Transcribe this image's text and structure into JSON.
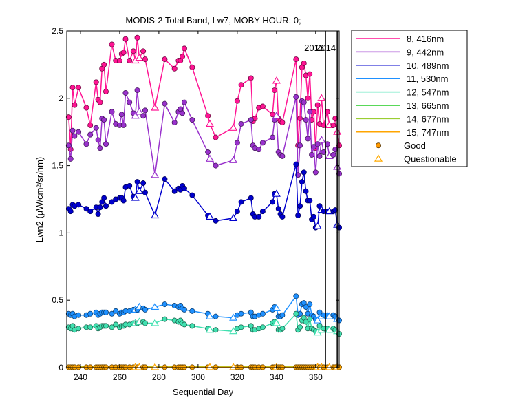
{
  "chart_data": {
    "type": "line",
    "title": "MODIS-2 Total Band, Lw7, MOBY HOUR: 0;",
    "xlabel": "Sequential Day",
    "ylabel": "Lwn2 (µW/cm²/sr/nm)",
    "xlim": [
      233,
      372
    ],
    "ylim": [
      0,
      2.5
    ],
    "xticks": [
      "240",
      "260",
      "280",
      "300",
      "320",
      "340",
      "360"
    ],
    "yticks": [
      "0",
      "0.5",
      "1",
      "1.5",
      "2",
      "2.5"
    ],
    "grid": false,
    "legend_position": "outside-right",
    "year_markers": [
      {
        "label": "2013",
        "x": 365
      },
      {
        "label": "2014",
        "x": 371
      }
    ],
    "x": [
      234,
      235,
      236,
      237,
      239,
      243,
      245,
      248,
      249,
      250,
      251,
      252,
      253,
      256,
      258,
      260,
      261,
      262,
      263,
      265,
      267,
      268,
      269,
      270,
      272,
      273,
      278,
      283,
      288,
      290,
      291,
      292,
      293,
      297,
      305,
      306,
      309,
      318,
      320,
      322,
      327,
      328,
      329,
      331,
      333,
      338,
      339,
      340,
      341,
      342,
      343,
      350,
      351,
      352,
      353,
      354,
      355,
      356,
      357,
      358,
      359,
      360,
      361,
      362,
      363,
      364,
      366,
      367,
      369,
      370,
      371,
      372
    ],
    "series": [
      {
        "name": "8, 416nm",
        "color": "#ff1493",
        "values": [
          1.86,
          1.62,
          2.08,
          1.95,
          2.08,
          1.93,
          1.8,
          2.12,
          1.99,
          1.97,
          2.22,
          2.25,
          2.05,
          2.4,
          2.28,
          2.28,
          2.33,
          2.34,
          2.44,
          2.28,
          2.35,
          2.28,
          2.45,
          2.3,
          2.35,
          2.29,
          1.93,
          2.29,
          2.22,
          2.28,
          2.28,
          2.31,
          2.37,
          2.23,
          1.87,
          1.81,
          1.71,
          1.78,
          1.98,
          2.1,
          2.15,
          1.83,
          1.85,
          1.93,
          1.94,
          1.88,
          2.06,
          2.13,
          1.85,
          1.83,
          1.82,
          2.29,
          1.65,
          1.85,
          2.23,
          2.26,
          2.17,
          2.0,
          2.18,
          1.84,
          1.9,
          1.63,
          1.95,
          1.81,
          2.0,
          1.8,
          1.9,
          1.8,
          1.8,
          1.85,
          1.75,
          1.65
        ],
        "quality": [
          "g",
          "g",
          "g",
          "g",
          "g",
          "g",
          "g",
          "g",
          "g",
          "g",
          "g",
          "g",
          "g",
          "g",
          "g",
          "g",
          "g",
          "g",
          "g",
          "g",
          "g",
          "q",
          "g",
          "q",
          "g",
          "g",
          "q",
          "g",
          "g",
          "g",
          "g",
          "g",
          "g",
          "g",
          "g",
          "q",
          "g",
          "q",
          "g",
          "g",
          "g",
          "g",
          "g",
          "g",
          "g",
          "g",
          "g",
          "q",
          "g",
          "g",
          "g",
          "g",
          "g",
          "g",
          "g",
          "g",
          "g",
          "g",
          "g",
          "g",
          "g",
          "g",
          "g",
          "g",
          "q",
          "g",
          "g",
          "q",
          "g",
          "g",
          "q",
          "g"
        ]
      },
      {
        "name": "9, 442nm",
        "color": "#9932cc",
        "values": [
          1.65,
          1.55,
          1.76,
          1.72,
          1.75,
          1.66,
          1.73,
          1.78,
          1.69,
          1.63,
          1.85,
          1.84,
          1.66,
          1.9,
          1.81,
          1.8,
          1.88,
          1.8,
          2.04,
          1.97,
          1.89,
          1.87,
          2.06,
          1.9,
          1.87,
          1.91,
          1.43,
          1.96,
          1.82,
          1.9,
          1.92,
          1.89,
          1.97,
          1.84,
          1.6,
          1.55,
          1.5,
          1.54,
          1.67,
          1.81,
          1.84,
          1.65,
          1.63,
          1.62,
          1.67,
          1.71,
          1.84,
          1.87,
          1.6,
          1.58,
          1.57,
          2.01,
          1.43,
          1.65,
          1.98,
          1.97,
          1.84,
          1.7,
          1.9,
          1.58,
          1.64,
          1.45,
          1.66,
          1.57,
          1.69,
          1.6,
          1.66,
          1.57,
          1.58,
          1.62,
          1.49,
          1.44
        ],
        "quality": [
          "g",
          "g",
          "g",
          "g",
          "g",
          "g",
          "g",
          "g",
          "g",
          "g",
          "g",
          "g",
          "g",
          "g",
          "g",
          "g",
          "g",
          "g",
          "g",
          "g",
          "g",
          "q",
          "g",
          "q",
          "g",
          "g",
          "q",
          "g",
          "g",
          "g",
          "g",
          "g",
          "g",
          "g",
          "g",
          "q",
          "g",
          "q",
          "g",
          "g",
          "g",
          "g",
          "g",
          "g",
          "g",
          "g",
          "g",
          "q",
          "g",
          "g",
          "g",
          "g",
          "g",
          "g",
          "g",
          "g",
          "g",
          "g",
          "g",
          "g",
          "g",
          "g",
          "g",
          "g",
          "q",
          "g",
          "g",
          "q",
          "g",
          "g",
          "q",
          "g"
        ]
      },
      {
        "name": "10, 489nm",
        "color": "#0000cd",
        "values": [
          1.18,
          1.16,
          1.21,
          1.2,
          1.21,
          1.18,
          1.16,
          1.19,
          1.14,
          1.19,
          1.23,
          1.26,
          1.2,
          1.23,
          1.25,
          1.26,
          1.26,
          1.24,
          1.34,
          1.35,
          1.27,
          1.26,
          1.38,
          1.31,
          1.37,
          1.3,
          1.13,
          1.4,
          1.31,
          1.33,
          1.32,
          1.35,
          1.33,
          1.28,
          1.13,
          1.12,
          1.09,
          1.11,
          1.16,
          1.23,
          1.26,
          1.14,
          1.12,
          1.12,
          1.16,
          1.23,
          1.29,
          1.29,
          1.18,
          1.14,
          1.12,
          1.51,
          1.13,
          1.2,
          1.38,
          1.45,
          1.31,
          1.24,
          1.24,
          1.1,
          1.12,
          1.04,
          1.05,
          1.2,
          1.17,
          1.16,
          1.16,
          1.16,
          1.16,
          1.17,
          1.06,
          1.04
        ],
        "quality": [
          "g",
          "g",
          "g",
          "g",
          "g",
          "g",
          "g",
          "g",
          "g",
          "g",
          "g",
          "g",
          "g",
          "g",
          "g",
          "g",
          "g",
          "g",
          "g",
          "g",
          "g",
          "q",
          "g",
          "q",
          "g",
          "g",
          "q",
          "g",
          "g",
          "g",
          "g",
          "g",
          "g",
          "g",
          "g",
          "q",
          "g",
          "q",
          "g",
          "g",
          "g",
          "g",
          "g",
          "g",
          "g",
          "g",
          "g",
          "q",
          "g",
          "g",
          "g",
          "g",
          "g",
          "g",
          "g",
          "g",
          "g",
          "g",
          "g",
          "g",
          "g",
          "g",
          "q",
          "g",
          "q",
          "g",
          "g",
          "q",
          "g",
          "g",
          "q",
          "g"
        ]
      },
      {
        "name": "11, 530nm",
        "color": "#1e90ff",
        "values": [
          0.4,
          0.39,
          0.4,
          0.38,
          0.39,
          0.39,
          0.4,
          0.41,
          0.39,
          0.4,
          0.41,
          0.41,
          0.41,
          0.4,
          0.42,
          0.4,
          0.41,
          0.41,
          0.42,
          0.42,
          0.43,
          0.43,
          0.43,
          0.45,
          0.44,
          0.43,
          0.45,
          0.47,
          0.46,
          0.45,
          0.46,
          0.44,
          0.43,
          0.42,
          0.4,
          0.38,
          0.38,
          0.37,
          0.39,
          0.4,
          0.41,
          0.38,
          0.38,
          0.39,
          0.4,
          0.43,
          0.45,
          0.44,
          0.38,
          0.38,
          0.39,
          0.53,
          0.39,
          0.4,
          0.47,
          0.48,
          0.45,
          0.4,
          0.47,
          0.39,
          0.38,
          0.36,
          0.35,
          0.41,
          0.38,
          0.39,
          0.39,
          0.38,
          0.39,
          0.38,
          0.36,
          0.35
        ],
        "quality": [
          "g",
          "g",
          "g",
          "g",
          "g",
          "g",
          "g",
          "g",
          "g",
          "g",
          "g",
          "g",
          "g",
          "g",
          "g",
          "g",
          "g",
          "g",
          "g",
          "g",
          "g",
          "q",
          "g",
          "q",
          "g",
          "g",
          "q",
          "g",
          "g",
          "g",
          "g",
          "g",
          "g",
          "g",
          "g",
          "q",
          "g",
          "q",
          "g",
          "g",
          "g",
          "g",
          "g",
          "g",
          "g",
          "g",
          "g",
          "q",
          "g",
          "g",
          "g",
          "g",
          "g",
          "g",
          "g",
          "g",
          "g",
          "g",
          "g",
          "g",
          "g",
          "g",
          "q",
          "g",
          "q",
          "g",
          "g",
          "q",
          "g",
          "g",
          "q",
          "g"
        ]
      },
      {
        "name": "12, 547nm",
        "color": "#40e0b0",
        "values": [
          0.3,
          0.29,
          0.31,
          0.28,
          0.29,
          0.3,
          0.3,
          0.31,
          0.29,
          0.3,
          0.31,
          0.31,
          0.31,
          0.3,
          0.32,
          0.3,
          0.31,
          0.31,
          0.32,
          0.32,
          0.33,
          0.33,
          0.33,
          0.34,
          0.34,
          0.33,
          0.33,
          0.36,
          0.35,
          0.34,
          0.35,
          0.33,
          0.32,
          0.31,
          0.29,
          0.28,
          0.28,
          0.27,
          0.29,
          0.3,
          0.31,
          0.28,
          0.28,
          0.29,
          0.3,
          0.33,
          0.34,
          0.33,
          0.28,
          0.28,
          0.29,
          0.4,
          0.28,
          0.3,
          0.35,
          0.37,
          0.34,
          0.29,
          0.36,
          0.29,
          0.28,
          0.27,
          0.26,
          0.31,
          0.28,
          0.29,
          0.29,
          0.28,
          0.29,
          0.28,
          0.27,
          0.25
        ],
        "quality": [
          "g",
          "g",
          "g",
          "g",
          "g",
          "g",
          "g",
          "g",
          "g",
          "g",
          "g",
          "g",
          "g",
          "g",
          "g",
          "g",
          "g",
          "g",
          "g",
          "g",
          "g",
          "q",
          "g",
          "q",
          "g",
          "g",
          "q",
          "g",
          "g",
          "g",
          "g",
          "g",
          "g",
          "g",
          "g",
          "q",
          "g",
          "q",
          "g",
          "g",
          "g",
          "g",
          "g",
          "g",
          "g",
          "g",
          "g",
          "q",
          "g",
          "g",
          "g",
          "g",
          "g",
          "g",
          "g",
          "g",
          "g",
          "g",
          "g",
          "g",
          "g",
          "g",
          "q",
          "g",
          "q",
          "g",
          "g",
          "q",
          "g",
          "g",
          "q",
          "g"
        ]
      },
      {
        "name": "13, 665nm",
        "color": "#22cc22",
        "values": [
          0.005,
          0.005,
          0.005,
          0.005,
          0.005,
          0.005,
          0.005,
          0.005,
          0.005,
          0.005,
          0.005,
          0.005,
          0.005,
          0.005,
          0.005,
          0.005,
          0.005,
          0.005,
          0.005,
          0.005,
          0.005,
          0.005,
          0.005,
          0.005,
          0.005,
          0.005,
          0.005,
          0.005,
          0.005,
          0.005,
          0.005,
          0.005,
          0.005,
          0.005,
          0.005,
          0.005,
          0.005,
          0.005,
          0.005,
          0.005,
          0.005,
          0.005,
          0.005,
          0.005,
          0.005,
          0.005,
          0.005,
          0.005,
          0.005,
          0.005,
          0.005,
          0.005,
          0.005,
          0.005,
          0.005,
          0.005,
          0.005,
          0.005,
          0.005,
          0.005,
          0.005,
          0.005,
          0.005,
          0.005,
          0.005,
          0.005,
          0.005,
          0.005,
          0.005,
          0.005,
          0.005,
          0.005
        ],
        "quality": []
      },
      {
        "name": "14, 677nm",
        "color": "#9acd32",
        "values": [
          0.006,
          0.006,
          0.006,
          0.006,
          0.006,
          0.006,
          0.006,
          0.006,
          0.006,
          0.006,
          0.006,
          0.006,
          0.006,
          0.006,
          0.006,
          0.006,
          0.006,
          0.006,
          0.006,
          0.006,
          0.006,
          0.006,
          0.006,
          0.006,
          0.006,
          0.006,
          0.006,
          0.006,
          0.006,
          0.006,
          0.006,
          0.006,
          0.006,
          0.006,
          0.006,
          0.006,
          0.006,
          0.006,
          0.006,
          0.006,
          0.006,
          0.006,
          0.006,
          0.006,
          0.006,
          0.006,
          0.006,
          0.006,
          0.006,
          0.006,
          0.006,
          0.006,
          0.006,
          0.006,
          0.006,
          0.006,
          0.006,
          0.006,
          0.006,
          0.006,
          0.006,
          0.006,
          0.006,
          0.006,
          0.006,
          0.006,
          0.006,
          0.006,
          0.006,
          0.006,
          0.006,
          0.006
        ],
        "quality": []
      },
      {
        "name": "15, 747nm",
        "color": "#ffa500",
        "values": [
          0.003,
          0.003,
          0.003,
          0.003,
          0.003,
          0.003,
          0.003,
          0.003,
          0.003,
          0.003,
          0.003,
          0.003,
          0.003,
          0.003,
          0.003,
          0.003,
          0.003,
          0.003,
          0.003,
          0.003,
          0.003,
          0.003,
          0.003,
          0.003,
          0.003,
          0.003,
          0.003,
          0.003,
          0.003,
          0.003,
          0.003,
          0.003,
          0.003,
          0.003,
          0.003,
          0.003,
          0.003,
          0.003,
          0.003,
          0.003,
          0.003,
          0.003,
          0.003,
          0.003,
          0.003,
          0.003,
          0.003,
          0.003,
          0.003,
          0.003,
          0.003,
          0.003,
          0.003,
          0.003,
          0.003,
          0.003,
          0.003,
          0.003,
          0.003,
          0.003,
          0.003,
          0.003,
          0.003,
          0.003,
          0.003,
          0.003,
          0.003,
          0.003,
          0.003,
          0.003,
          0.003,
          0.003
        ],
        "quality": [
          "g",
          "g",
          "g",
          "g",
          "g",
          "g",
          "g",
          "g",
          "g",
          "g",
          "g",
          "g",
          "g",
          "g",
          "g",
          "g",
          "g",
          "g",
          "g",
          "g",
          "g",
          "q",
          "g",
          "q",
          "g",
          "g",
          "q",
          "g",
          "g",
          "g",
          "g",
          "g",
          "g",
          "g",
          "g",
          "q",
          "g",
          "q",
          "g",
          "g",
          "g",
          "g",
          "g",
          "g",
          "g",
          "g",
          "g",
          "q",
          "g",
          "g",
          "g",
          "g",
          "g",
          "g",
          "g",
          "g",
          "g",
          "g",
          "g",
          "g",
          "g",
          "g",
          "q",
          "g",
          "q",
          "g",
          "g",
          "q",
          "g",
          "g",
          "q",
          "g"
        ]
      }
    ],
    "legend_markers": [
      {
        "label": "Good",
        "color": "#ff9900",
        "marker": "circle"
      },
      {
        "label": "Questionable",
        "color": "#ffaa00",
        "marker": "triangle"
      }
    ]
  }
}
